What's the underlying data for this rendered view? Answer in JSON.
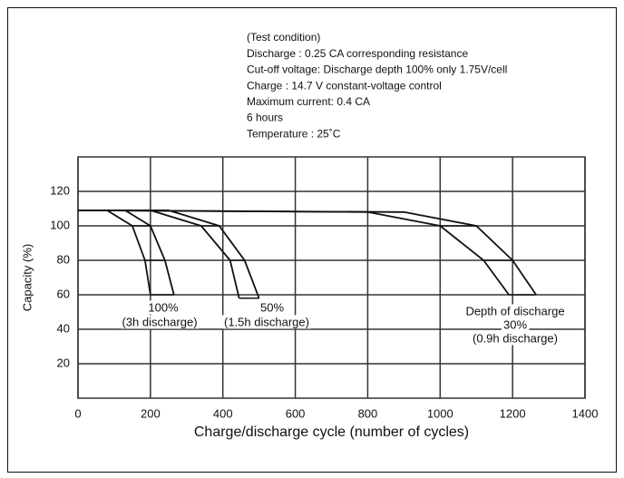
{
  "chart_data": {
    "type": "line",
    "conditions": [
      "(Test condition)",
      "Discharge : 0.25 CA corresponding resistance",
      "Cut-off voltage: Discharge depth 100% only 1.75V/cell",
      "Charge : 14.7 V constant-voltage control",
      "Maximum current: 0.4 CA",
      "6 hours",
      "Temperature : 25˚C"
    ],
    "xlabel": "Charge/discharge cycle (number of cycles)",
    "ylabel": "Capacity (%)",
    "xlim": [
      0,
      1400
    ],
    "xticks": [
      0,
      200,
      400,
      600,
      800,
      1000,
      1200,
      1400
    ],
    "ylim": [
      0,
      140
    ],
    "yticks": [
      20,
      40,
      60,
      80,
      100,
      120
    ],
    "grid": true,
    "color": "#111111",
    "series": [
      {
        "x": [
          0,
          80,
          150,
          185,
          200
        ],
        "values": [
          109,
          109,
          100,
          80,
          60
        ]
      },
      {
        "x": [
          0,
          130,
          200,
          240,
          265
        ],
        "values": [
          109,
          109,
          100,
          80,
          60
        ]
      },
      {
        "x": [
          0,
          200,
          340,
          420,
          445
        ],
        "values": [
          109,
          109,
          100,
          80,
          58
        ]
      },
      {
        "x": [
          0,
          250,
          390,
          460,
          500
        ],
        "values": [
          109,
          109,
          100,
          80,
          58
        ]
      },
      {
        "x": [
          0,
          800,
          1000,
          1120,
          1190
        ],
        "values": [
          109,
          108,
          100,
          80,
          60
        ]
      },
      {
        "x": [
          0,
          900,
          1100,
          1200,
          1265
        ],
        "values": [
          109,
          108,
          100,
          80,
          60
        ]
      }
    ],
    "annotations": [
      {
        "text": "100%"
      },
      {
        "text": "(3h discharge)"
      },
      {
        "text": "50%"
      },
      {
        "text": "(1.5h discharge)"
      },
      {
        "text": "Depth of discharge"
      },
      {
        "text": "30%"
      },
      {
        "text": "(0.9h discharge)"
      }
    ]
  }
}
